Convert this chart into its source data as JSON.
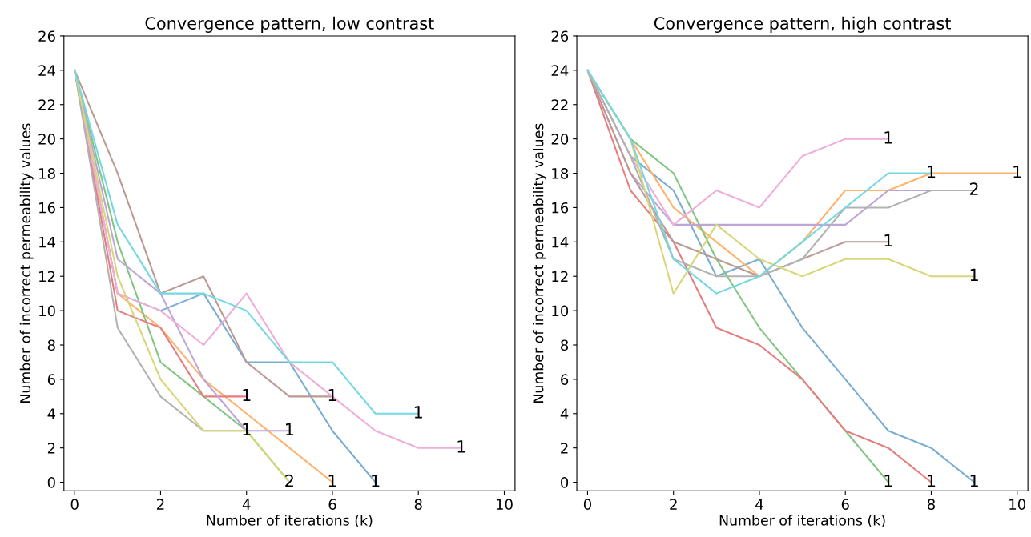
{
  "chart_data": [
    {
      "type": "line",
      "title": "Convergence pattern, low contrast",
      "xlabel": "Number of iterations (k)",
      "ylabel": "Number of incorrect permeability values",
      "xlim": [
        -0.25,
        10.25
      ],
      "ylim": [
        -0.5,
        26
      ],
      "xticks": [
        0,
        2,
        4,
        6,
        8,
        10
      ],
      "yticks": [
        0,
        2,
        4,
        6,
        8,
        10,
        12,
        14,
        16,
        18,
        20,
        22,
        24,
        26
      ],
      "grid": false,
      "marker": "none",
      "line_style": "solid",
      "series": [
        {
          "color": "#79add2",
          "x": [
            0,
            1,
            2,
            3,
            4,
            5,
            6,
            7
          ],
          "values": [
            24,
            11,
            10,
            11,
            7,
            7,
            3,
            0
          ]
        },
        {
          "color": "#ffb26e",
          "x": [
            0,
            1,
            2,
            3,
            4,
            5,
            6
          ],
          "values": [
            24,
            11,
            9,
            6,
            4,
            2,
            0
          ]
        },
        {
          "color": "#80c680",
          "x": [
            0,
            1,
            2,
            3,
            4,
            5
          ],
          "values": [
            24,
            14,
            7,
            5,
            3,
            0
          ]
        },
        {
          "color": "#e67d7e",
          "x": [
            0,
            1,
            2,
            3,
            4
          ],
          "values": [
            24,
            10,
            9,
            5,
            5
          ]
        },
        {
          "color": "#bfa4d7",
          "x": [
            0,
            1,
            2,
            3,
            4,
            5
          ],
          "values": [
            24,
            13,
            11,
            6,
            3,
            3
          ]
        },
        {
          "color": "#ba9a93",
          "x": [
            0,
            1,
            2,
            3,
            4,
            5,
            6
          ],
          "values": [
            24,
            18,
            11,
            12,
            7,
            5,
            5
          ]
        },
        {
          "color": "#eeadda",
          "x": [
            0,
            1,
            2,
            3,
            4,
            5,
            6,
            7,
            8,
            9
          ],
          "values": [
            24,
            11,
            10,
            8,
            11,
            7,
            5,
            3,
            2,
            2
          ]
        },
        {
          "color": "#b2b2b2",
          "x": [
            0,
            1,
            2,
            3,
            4
          ],
          "values": [
            24,
            9,
            5,
            3,
            3
          ]
        },
        {
          "color": "#d7d77a",
          "x": [
            0,
            1,
            2,
            3,
            4,
            5
          ],
          "values": [
            24,
            12,
            6,
            3,
            3,
            0
          ]
        },
        {
          "color": "#74d8e2",
          "x": [
            0,
            1,
            2,
            3,
            4,
            5,
            6,
            7,
            8
          ],
          "values": [
            24,
            15,
            11,
            11,
            10,
            7,
            7,
            4,
            4
          ]
        }
      ],
      "annotations": [
        {
          "text": "1",
          "x": 4,
          "y": 5
        },
        {
          "text": "1",
          "x": 4,
          "y": 3
        },
        {
          "text": "1",
          "x": 5,
          "y": 3
        },
        {
          "text": "2",
          "x": 5,
          "y": 0
        },
        {
          "text": "1",
          "x": 6,
          "y": 5
        },
        {
          "text": "1",
          "x": 6,
          "y": 0
        },
        {
          "text": "1",
          "x": 7,
          "y": 0
        },
        {
          "text": "1",
          "x": 8,
          "y": 4
        },
        {
          "text": "1",
          "x": 9,
          "y": 2
        }
      ]
    },
    {
      "type": "line",
      "title": "Convergence pattern, high contrast",
      "xlabel": "Number of iterations (k)",
      "ylabel": "Number of incorrect permeability values",
      "xlim": [
        -0.25,
        10.25
      ],
      "ylim": [
        -0.5,
        26
      ],
      "xticks": [
        0,
        2,
        4,
        6,
        8,
        10
      ],
      "yticks": [
        0,
        2,
        4,
        6,
        8,
        10,
        12,
        14,
        16,
        18,
        20,
        22,
        24,
        26
      ],
      "grid": false,
      "marker": "none",
      "line_style": "solid",
      "series": [
        {
          "color": "#79add2",
          "x": [
            0,
            1,
            2,
            3,
            4,
            5,
            6,
            7,
            8,
            9
          ],
          "values": [
            24,
            19,
            17,
            12,
            13,
            9,
            6,
            3,
            2,
            0
          ]
        },
        {
          "color": "#ffb26e",
          "x": [
            0,
            1,
            2,
            3,
            4,
            5,
            6,
            7,
            8,
            9,
            10
          ],
          "values": [
            24,
            20,
            16,
            14,
            12,
            14,
            17,
            17,
            18,
            18,
            18
          ]
        },
        {
          "color": "#80c680",
          "x": [
            0,
            1,
            2,
            3,
            4,
            5,
            6,
            7
          ],
          "values": [
            24,
            20,
            18,
            13,
            9,
            6,
            3,
            0
          ]
        },
        {
          "color": "#e67d7e",
          "x": [
            0,
            1,
            2,
            3,
            4,
            5,
            6,
            7,
            8
          ],
          "values": [
            24,
            17,
            14,
            9,
            8,
            6,
            3,
            2,
            0
          ]
        },
        {
          "color": "#bfa4d7",
          "x": [
            0,
            1,
            2,
            3,
            4,
            5,
            6,
            7,
            8,
            9
          ],
          "values": [
            24,
            18,
            15,
            15,
            15,
            15,
            15,
            17,
            17,
            17
          ]
        },
        {
          "color": "#ba9a93",
          "x": [
            0,
            1,
            2,
            3,
            4,
            5,
            6,
            7
          ],
          "values": [
            24,
            18,
            14,
            13,
            12,
            13,
            14,
            14
          ]
        },
        {
          "color": "#eeadda",
          "x": [
            0,
            1,
            2,
            3,
            4,
            5,
            6,
            7
          ],
          "values": [
            24,
            19,
            15,
            17,
            16,
            19,
            20,
            20
          ]
        },
        {
          "color": "#b2b2b2",
          "x": [
            0,
            1,
            2,
            3,
            4,
            5,
            6,
            7,
            8,
            9
          ],
          "values": [
            24,
            19,
            13,
            12,
            12,
            13,
            16,
            16,
            17,
            17
          ]
        },
        {
          "color": "#d7d77a",
          "x": [
            0,
            1,
            2,
            3,
            4,
            5,
            6,
            7,
            8,
            9
          ],
          "values": [
            24,
            20,
            11,
            15,
            13,
            12,
            13,
            13,
            12,
            12
          ]
        },
        {
          "color": "#74d8e2",
          "x": [
            0,
            1,
            2,
            3,
            4,
            5,
            6,
            7,
            8
          ],
          "values": [
            24,
            20,
            13,
            11,
            12,
            14,
            16,
            18,
            18
          ]
        }
      ],
      "annotations": [
        {
          "text": "1",
          "x": 7,
          "y": 20
        },
        {
          "text": "1",
          "x": 8,
          "y": 18
        },
        {
          "text": "1",
          "x": 10,
          "y": 18
        },
        {
          "text": "2",
          "x": 9,
          "y": 17
        },
        {
          "text": "1",
          "x": 7,
          "y": 14
        },
        {
          "text": "1",
          "x": 9,
          "y": 12
        },
        {
          "text": "1",
          "x": 7,
          "y": 0
        },
        {
          "text": "1",
          "x": 8,
          "y": 0
        },
        {
          "text": "1",
          "x": 9,
          "y": 0
        }
      ]
    }
  ]
}
